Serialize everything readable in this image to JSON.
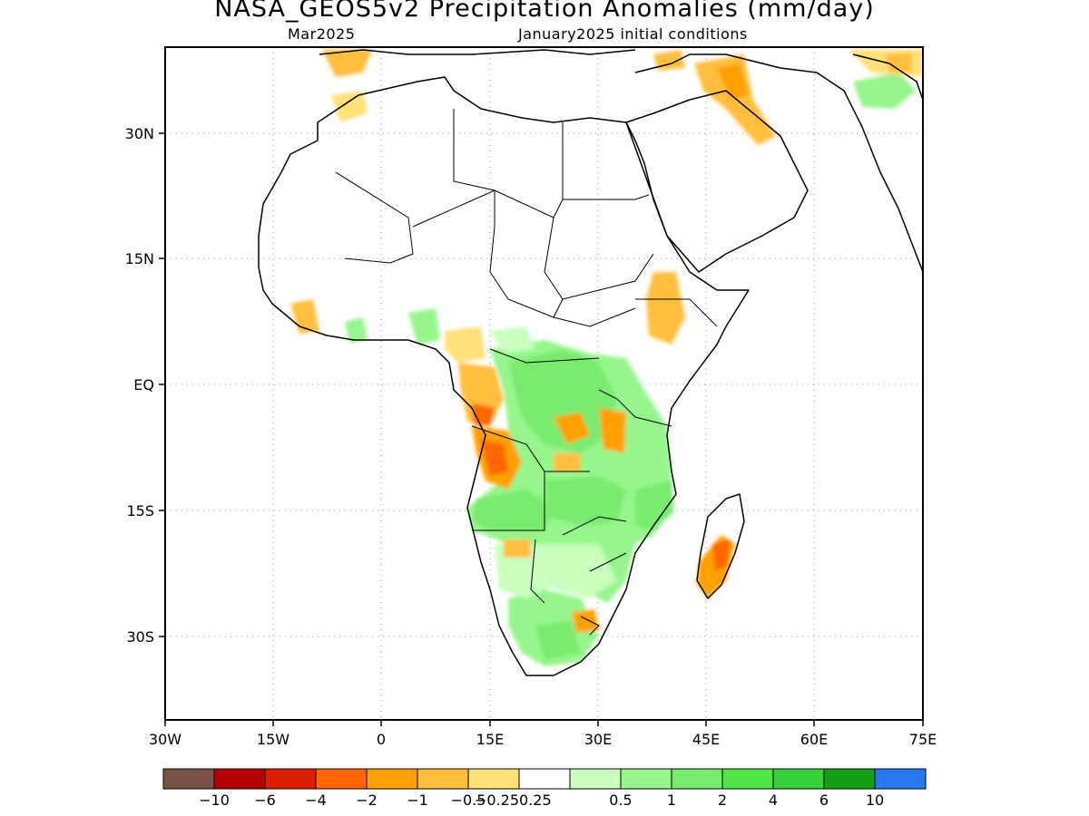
{
  "title": "NASA_GEOS5v2 Precipitation Anomalies (mm/day)",
  "subtitle_left": "Mar2025",
  "subtitle_right": "January2025 initial conditions",
  "map": {
    "lon_labels": [
      "30W",
      "15W",
      "0",
      "15E",
      "30E",
      "45E",
      "60E",
      "75E"
    ],
    "lat_labels": [
      "30N",
      "15N",
      "EQ",
      "15S",
      "30S"
    ]
  },
  "colorbar": {
    "colors": [
      "#7a5346",
      "#b40000",
      "#dc1e00",
      "#ff6600",
      "#ffa000",
      "#ffbe3c",
      "#ffe178",
      "#ffffff",
      "#c8ffbe",
      "#96f58c",
      "#78ea6e",
      "#50e646",
      "#37d23c",
      "#14a014",
      "#2878f0"
    ],
    "tick_labels": [
      "−10",
      "−6",
      "−4",
      "−2",
      "−1",
      "−0.5",
      "−0.25",
      "0.25",
      "0.5",
      "1",
      "2",
      "4",
      "6",
      "10"
    ]
  },
  "anomaly_legend_colors": {
    "dry_strong": "#ff6600",
    "dry_moderate": "#ffbe3c",
    "dry_weak": "#ffe178",
    "wet_weak": "#c8ffbe",
    "wet_moderate": "#96f58c",
    "wet_strong": "#50e646"
  }
}
